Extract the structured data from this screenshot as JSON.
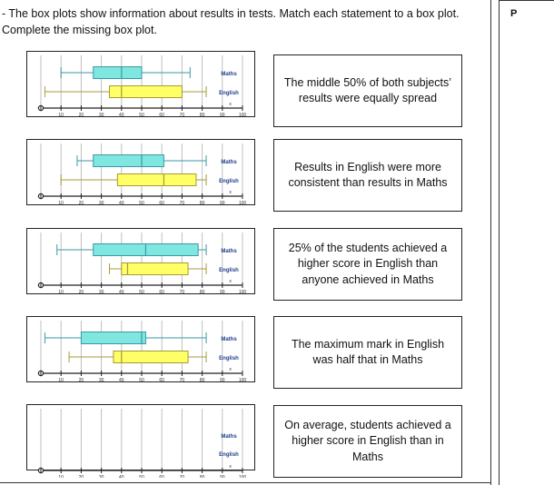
{
  "question": {
    "number_prefix": "-",
    "text": "The box plots show information about results in tests.  Match each statement to a box plot.  Complete the missing box plot."
  },
  "column_header": "P",
  "axis": {
    "ticks": [
      "10",
      "20",
      "30",
      "40",
      "50",
      "60",
      "70",
      "80",
      "90",
      "100"
    ],
    "cross_mark": "x"
  },
  "labels": {
    "maths": "Maths",
    "english": "English"
  },
  "colors": {
    "maths_fill": "#7fe6e0",
    "maths_stroke": "#3a9aa6",
    "english_fill": "#ffff66",
    "english_stroke": "#a89a3a",
    "grid": "#bfbfbf"
  },
  "chart_data": [
    {
      "type": "boxplot",
      "series": [
        {
          "name": "Maths",
          "values": [
            10,
            26,
            40,
            50,
            74
          ]
        },
        {
          "name": "English",
          "values": [
            2,
            34,
            40,
            70,
            82
          ]
        }
      ]
    },
    {
      "type": "boxplot",
      "series": [
        {
          "name": "Maths",
          "values": [
            18,
            26,
            50,
            61,
            82
          ]
        },
        {
          "name": "English",
          "values": [
            10,
            38,
            61,
            77,
            82
          ]
        }
      ]
    },
    {
      "type": "boxplot",
      "series": [
        {
          "name": "Maths",
          "values": [
            8,
            26,
            52,
            78,
            82
          ]
        },
        {
          "name": "English",
          "values": [
            34,
            40,
            43,
            73,
            82
          ]
        }
      ]
    },
    {
      "type": "boxplot",
      "series": [
        {
          "name": "Maths",
          "values": [
            2,
            20,
            50,
            52,
            82
          ]
        },
        {
          "name": "English",
          "values": [
            14,
            36,
            40,
            73,
            82
          ]
        }
      ]
    },
    {
      "type": "boxplot",
      "series": []
    }
  ],
  "statements": [
    "The middle 50% of both subjects’ results were equally spread",
    "Results in English were more consistent than results in Maths",
    "25% of the students achieved a higher score in English than anyone achieved in Maths",
    "The maximum mark in English was half that in Maths",
    "On average, students achieved a higher score in English than in Maths"
  ]
}
